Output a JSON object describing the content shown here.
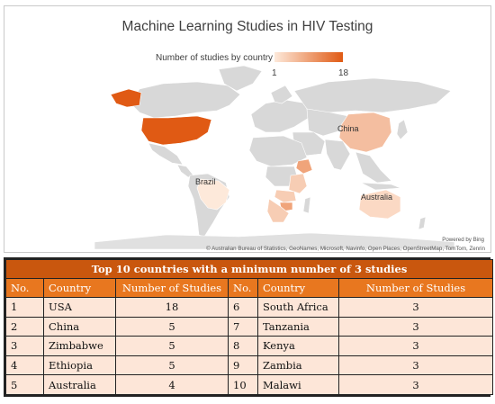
{
  "map": {
    "title": "Machine Learning Studies in HIV Testing",
    "legend": {
      "label": "Number of studies by country",
      "min": "1",
      "max": "18",
      "color_low": "#fde9da",
      "color_high": "#e05a14"
    },
    "labels": {
      "china": "China",
      "brazil": "Brazil",
      "australia": "Australia"
    },
    "powered_by": "Powered by Bing",
    "attribution": "© Australian Bureau of Statistics, GeoNames, Microsoft, Navinfo, Open Places, OpenStreetMap, TomTom, Zenrin"
  },
  "table": {
    "caption": "Top 10 countries with a minimum number of 3 studies",
    "headers": [
      "No.",
      "Country",
      "Number of Studies",
      "No.",
      "Country",
      "Number of Studies"
    ],
    "rows": [
      [
        "1",
        "USA",
        "18",
        "6",
        "South Africa",
        "3"
      ],
      [
        "2",
        "China",
        "5",
        "7",
        "Tanzania",
        "3"
      ],
      [
        "3",
        "Zimbabwe",
        "5",
        "8",
        "Kenya",
        "3"
      ],
      [
        "4",
        "Ethiopia",
        "5",
        "9",
        "Zambia",
        "3"
      ],
      [
        "5",
        "Australia",
        "4",
        "10",
        "Malawi",
        "3"
      ]
    ]
  }
}
